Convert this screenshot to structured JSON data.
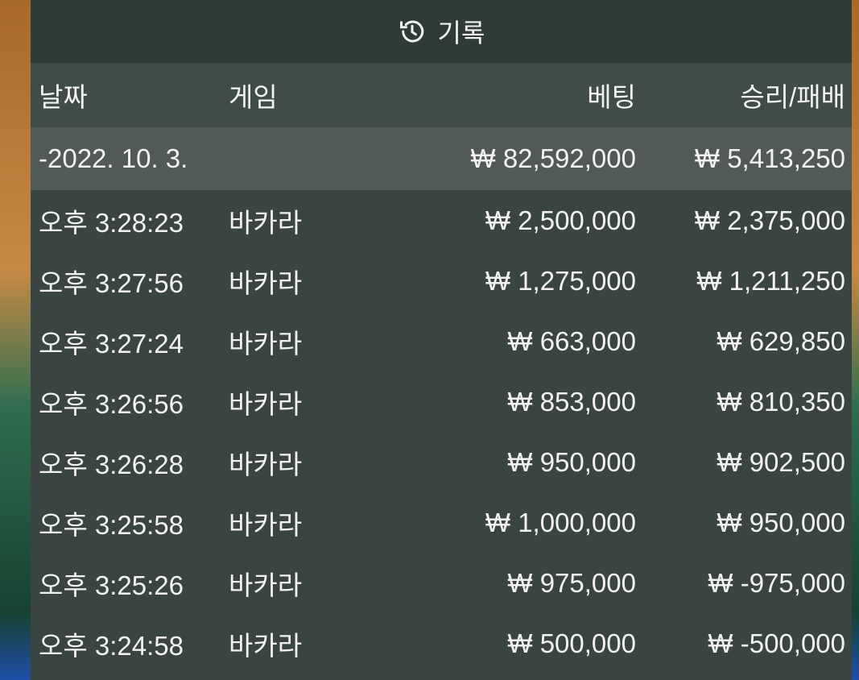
{
  "header": {
    "title": "기록",
    "icon": "history-icon"
  },
  "columns": {
    "date": "날짜",
    "game": "게임",
    "bet": "베팅",
    "result": "승리/패배"
  },
  "summary": {
    "date": "-2022. 10. 3.",
    "bet": "₩ 82,592,000",
    "result": "₩ 5,413,250"
  },
  "rows": [
    {
      "time": "오후 3:28:23",
      "game": "바카라",
      "bet": "₩ 2,500,000",
      "result": "₩ 2,375,000"
    },
    {
      "time": "오후 3:27:56",
      "game": "바카라",
      "bet": "₩ 1,275,000",
      "result": "₩ 1,211,250"
    },
    {
      "time": "오후 3:27:24",
      "game": "바카라",
      "bet": "₩ 663,000",
      "result": "₩ 629,850"
    },
    {
      "time": "오후 3:26:56",
      "game": "바카라",
      "bet": "₩ 853,000",
      "result": "₩ 810,350"
    },
    {
      "time": "오후 3:26:28",
      "game": "바카라",
      "bet": "₩ 950,000",
      "result": "₩ 902,500"
    },
    {
      "time": "오후 3:25:58",
      "game": "바카라",
      "bet": "₩ 1,000,000",
      "result": "₩ 950,000"
    },
    {
      "time": "오후 3:25:26",
      "game": "바카라",
      "bet": "₩ 975,000",
      "result": "₩ -975,000"
    },
    {
      "time": "오후 3:24:58",
      "game": "바카라",
      "bet": "₩ 500,000",
      "result": "₩ -500,000"
    }
  ]
}
